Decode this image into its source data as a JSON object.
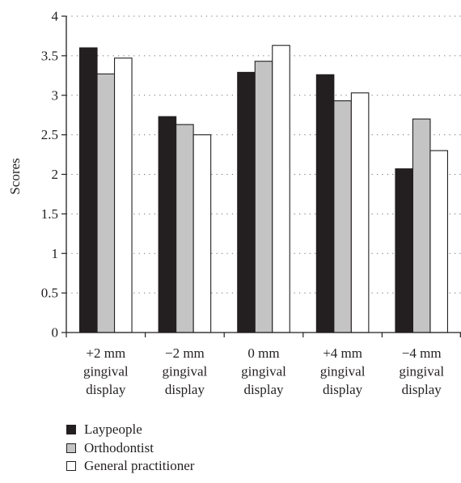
{
  "chart_data": {
    "type": "bar",
    "ylabel": "Scores",
    "xlabel": "",
    "ylim": [
      0,
      4
    ],
    "yticks": [
      0,
      0.5,
      1,
      1.5,
      2,
      2.5,
      3,
      3.5,
      4
    ],
    "ytick_labels": [
      "0",
      "0.5",
      "1",
      "1.5",
      "2",
      "2.5",
      "3",
      "3.5",
      "4"
    ],
    "grid": "dotted horizontal",
    "legend_position": "bottom",
    "categories": [
      [
        "+2 mm",
        "gingival",
        "display"
      ],
      [
        "−2 mm",
        "gingival",
        "display"
      ],
      [
        "0 mm",
        "gingival",
        "display"
      ],
      [
        "+4 mm",
        "gingival",
        "display"
      ],
      [
        "−4 mm",
        "gingival",
        "display"
      ]
    ],
    "series": [
      {
        "name": "Laypeople",
        "color": "#231f20",
        "values": [
          3.6,
          2.73,
          3.29,
          3.26,
          2.07
        ]
      },
      {
        "name": "Orthodontist",
        "color": "#c4c4c4",
        "values": [
          3.27,
          2.63,
          3.43,
          2.93,
          2.7
        ]
      },
      {
        "name": "General practitioner",
        "color": "#ffffff",
        "values": [
          3.47,
          2.5,
          3.63,
          3.03,
          2.3
        ]
      }
    ]
  }
}
